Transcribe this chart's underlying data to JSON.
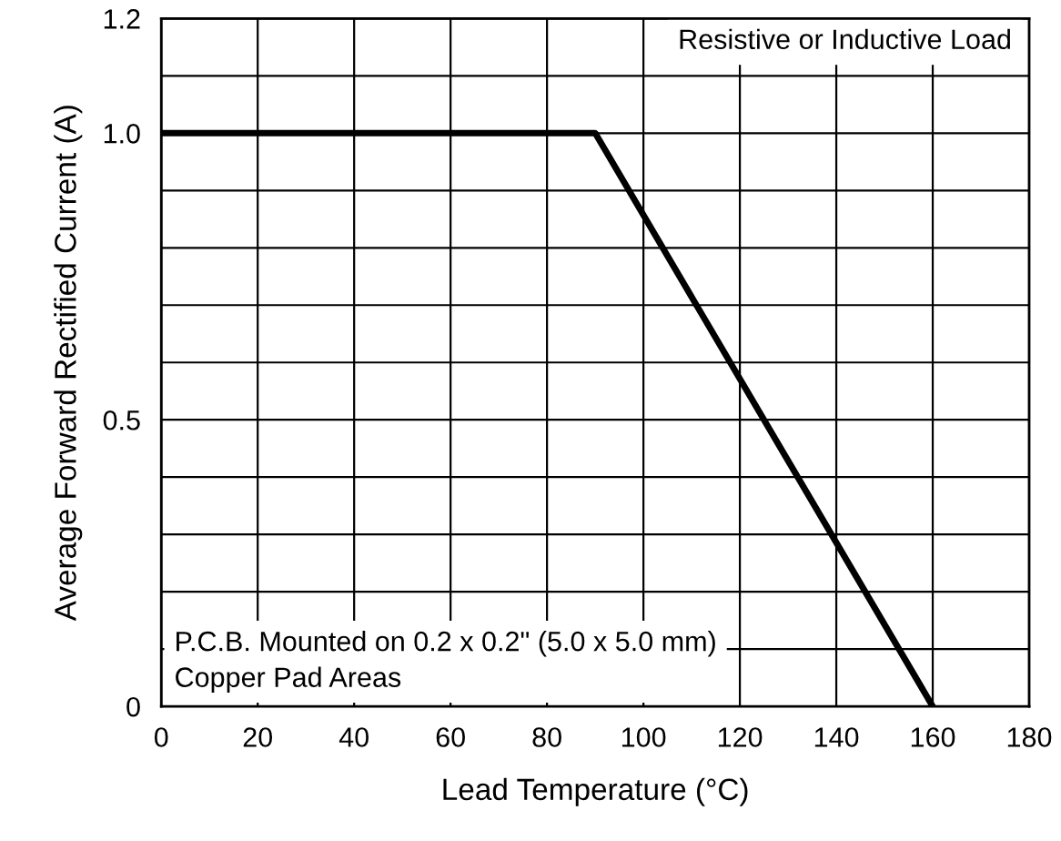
{
  "chart_data": {
    "type": "line",
    "xlabel": "Lead Temperature (°C)",
    "ylabel": "Average Forward Rectified Current (A)",
    "x": [
      0,
      90,
      160
    ],
    "series": [
      {
        "color": "#000000",
        "values": [
          1.0,
          1.0,
          0
        ]
      }
    ],
    "xlim": [
      0,
      180
    ],
    "xticks": [
      0,
      20,
      40,
      60,
      80,
      100,
      120,
      140,
      160,
      180
    ],
    "ylim": [
      0,
      1.2
    ],
    "yticks": [
      0,
      {
        "value": 0.1,
        "label": null
      },
      {
        "value": 0.2,
        "label": null
      },
      {
        "value": 0.3,
        "label": null
      },
      {
        "value": 0.4,
        "label": null
      },
      0.5,
      {
        "value": 0.6,
        "label": null
      },
      {
        "value": 0.7,
        "label": null
      },
      {
        "value": 0.8,
        "label": null
      },
      {
        "value": 0.9,
        "label": null
      },
      "1.0",
      {
        "value": 1.1,
        "label": null
      },
      1.2
    ],
    "grid": true,
    "marker": "none",
    "line_style": "solid",
    "legend": false,
    "annotations": [
      "Resistive or Inductive Load",
      "P.C.B. Mounted on 0.2 x 0.2\" (5.0 x 5.0 mm)\nCopper Pad Areas"
    ]
  }
}
